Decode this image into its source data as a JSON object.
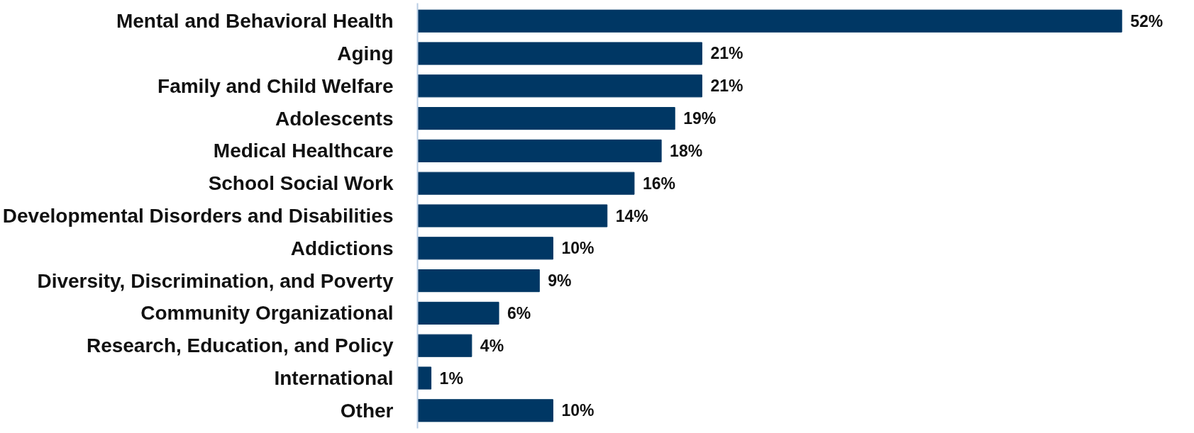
{
  "chart_data": {
    "type": "bar",
    "orientation": "horizontal",
    "categories": [
      "Mental and Behavioral Health",
      "Aging",
      "Family and Child Welfare",
      "Adolescents",
      "Medical Healthcare",
      "School Social Work",
      "Developmental Disorders and Disabilities",
      "Addictions",
      "Diversity, Discrimination, and Poverty",
      "Community Organizational",
      "Research, Education, and Policy",
      "International",
      "Other"
    ],
    "values": [
      52,
      21,
      21,
      19,
      18,
      16,
      14,
      10,
      9,
      6,
      4,
      1,
      10
    ],
    "value_labels": [
      "52%",
      "21%",
      "21%",
      "19%",
      "18%",
      "16%",
      "14%",
      "10%",
      "9%",
      "6%",
      "4%",
      "1%",
      "10%"
    ],
    "color": "#003764"
  }
}
